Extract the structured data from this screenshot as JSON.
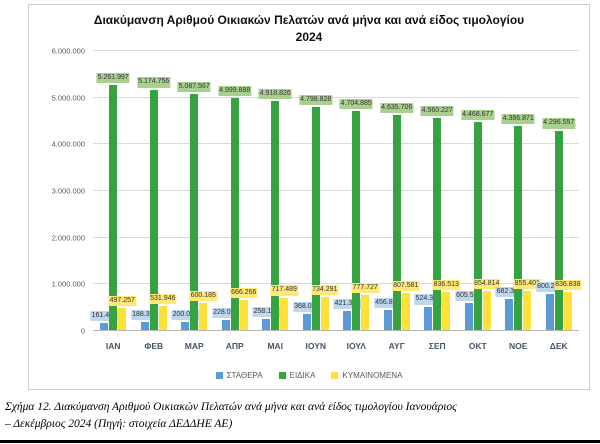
{
  "chart_data": {
    "type": "bar",
    "title": "Διακύμανση Αριθμού Οικιακών Πελατών ανά μήνα και ανά είδος τιμολογίου 2024",
    "title_line1": "Διακύμανση Αριθμού Οικιακών Πελατών ανά μήνα και ανά είδος τιμολογίου",
    "title_line2": "2024",
    "categories": [
      "ΙΑΝ",
      "ΦΕΒ",
      "ΜΑΡ",
      "ΑΠΡ",
      "ΜΑΙ",
      "ΙΟΥΝ",
      "ΙΟΥΛ",
      "ΑΥΓ",
      "ΣΕΠ",
      "ΟΚΤ",
      "ΝΟΕ",
      "ΔΕΚ"
    ],
    "series": [
      {
        "name": "ΣΤΑΘΕΡΑ",
        "color": "#5B9BD5",
        "label_bg": "#BDD7EE",
        "values": [
          161461,
          188304,
          200019,
          228017,
          258104,
          368042,
          421339,
          456877,
          524370,
          605516,
          682380,
          800265
        ],
        "labels": [
          "161.461",
          "188.304",
          "200.019",
          "228.017",
          "258.104",
          "368.042",
          "421.339",
          "456.877",
          "524.370",
          "605.516",
          "682.380",
          "800.265"
        ]
      },
      {
        "name": "ΕΙΔΙΚΑ",
        "color": "#35A340",
        "label_bg": "#A9D08E",
        "values": [
          5261997,
          5174756,
          5087567,
          4999888,
          4918826,
          4798828,
          4704885,
          4635706,
          4560227,
          4468677,
          4386871,
          4296557
        ],
        "labels": [
          "5.261.997",
          "5.174.756",
          "5.087.567",
          "4.999.888",
          "4.918.826",
          "4.798.828",
          "4.704.885",
          "4.635.706",
          "4.560.227",
          "4.468.677",
          "4.386.871",
          "4.296.557"
        ]
      },
      {
        "name": "ΚΥΜΑΙΝΟΜΕΝΑ",
        "color": "#FFE13A",
        "label_bg": "#FFE878",
        "values": [
          497257,
          531946,
          600185,
          666266,
          717489,
          734291,
          777727,
          807581,
          836513,
          854814,
          855401,
          836838
        ],
        "labels": [
          "497.257",
          "531.946",
          "600.185",
          "666.266",
          "717.489",
          "734.291",
          "777.727",
          "807.581",
          "836.513",
          "854.814",
          "855.401",
          "836.838"
        ]
      }
    ],
    "ylim": [
      0,
      6000000
    ],
    "ytick_values": [
      0,
      1000000,
      2000000,
      3000000,
      4000000,
      5000000,
      6000000
    ],
    "ytick_labels": [
      "0",
      "1.000.000",
      "2.000.000",
      "3.000.000",
      "4.000.000",
      "5.000.000",
      "6.000.000"
    ],
    "grid": true,
    "legend_position": "bottom"
  },
  "caption": {
    "line1": "Σχήμα 12. Διακύμανση Αριθμού Οικιακών Πελατών ανά μήνα και ανά είδος τιμολογίου Ιανουάριος",
    "line2": "– Δεκέμβριος 2024 (Πηγή: στοιχεία ΔΕΔΔΗΕ ΑΕ)"
  }
}
